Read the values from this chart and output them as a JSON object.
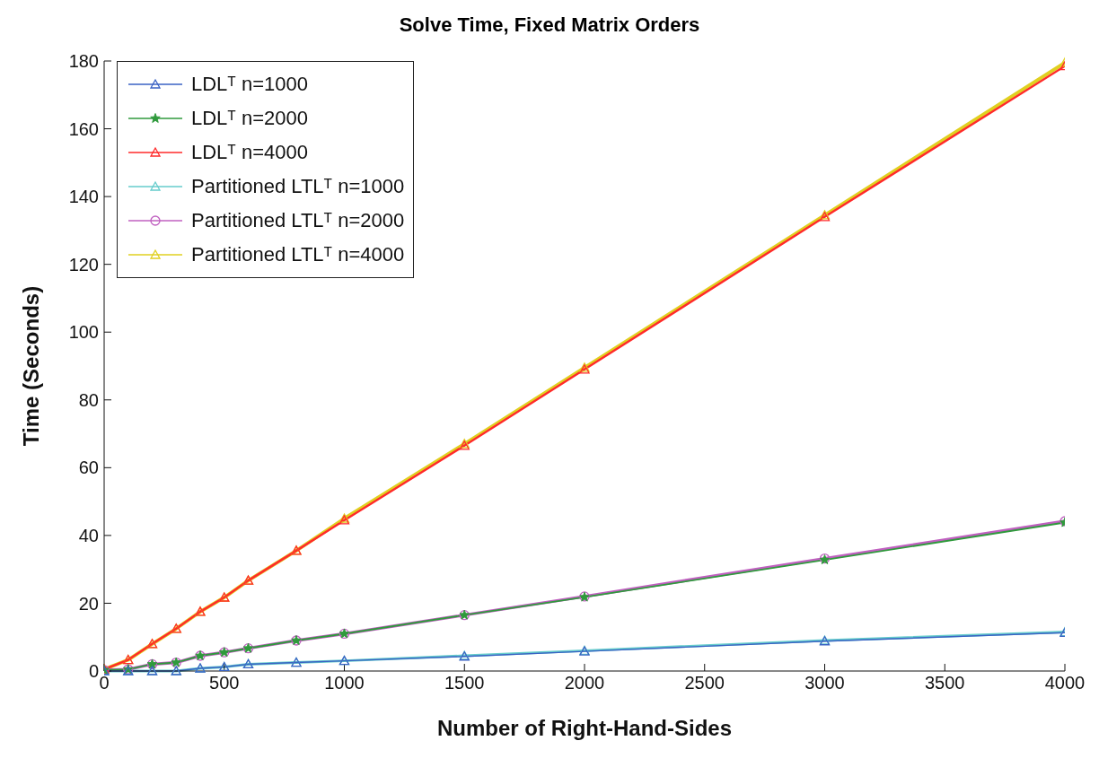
{
  "chart_data": {
    "type": "line",
    "title": "Solve Time, Fixed Matrix Orders",
    "xlabel": "Number of Right-Hand-Sides",
    "ylabel": "Time (Seconds)",
    "x": [
      0,
      100,
      200,
      300,
      400,
      500,
      600,
      800,
      1000,
      1500,
      2000,
      3000,
      4000
    ],
    "xlim": [
      0,
      4000
    ],
    "xticks": [
      0,
      500,
      1000,
      1500,
      2000,
      2500,
      3000,
      3500,
      4000
    ],
    "ylim": [
      0,
      180
    ],
    "yticks": [
      0,
      20,
      40,
      60,
      80,
      100,
      120,
      140,
      160,
      180
    ],
    "grid": false,
    "legend": "top left",
    "line_style": "solid",
    "series": [
      {
        "name": "LDLᵀ n=1000",
        "color": "#3a62c4",
        "marker": "triangle",
        "values": [
          0,
          0,
          0,
          0,
          0.8,
          1.2,
          2,
          2.5,
          3,
          4.3,
          5.8,
          8.8,
          11.3
        ]
      },
      {
        "name": "LDLᵀ n=2000",
        "color": "#2f9a3c",
        "marker": "star",
        "values": [
          0.3,
          0.5,
          2,
          2.5,
          4.5,
          5.5,
          6.7,
          9,
          11,
          16.5,
          21.8,
          32.8,
          43.8
        ]
      },
      {
        "name": "LDLᵀ n=4000",
        "color": "#ff2a2a",
        "marker": "triangle",
        "values": [
          0.5,
          3.3,
          8,
          12.5,
          17.5,
          21.7,
          26.7,
          35.5,
          44.5,
          66.5,
          89,
          134,
          178.5
        ]
      },
      {
        "name": "Partitioned LTLᵀ n=1000",
        "color": "#66cccc",
        "marker": "triangle",
        "values": [
          0,
          0,
          0,
          0,
          0.8,
          1.2,
          2,
          2.5,
          3,
          4.5,
          6,
          9,
          11.5
        ]
      },
      {
        "name": "Partitioned LTLᵀ n=2000",
        "color": "#c060c0",
        "marker": "circle",
        "values": [
          0.3,
          0.5,
          2,
          2.5,
          4.5,
          5.5,
          6.7,
          9,
          11,
          16.5,
          22,
          33.2,
          44.2
        ]
      },
      {
        "name": "Partitioned LTLᵀ n=4000",
        "color": "#e0d020",
        "marker": "triangle",
        "values": [
          0.5,
          3.3,
          8,
          12.5,
          17.5,
          21.7,
          26.7,
          35.5,
          45,
          67,
          89.5,
          134.5,
          179.5
        ]
      }
    ]
  }
}
